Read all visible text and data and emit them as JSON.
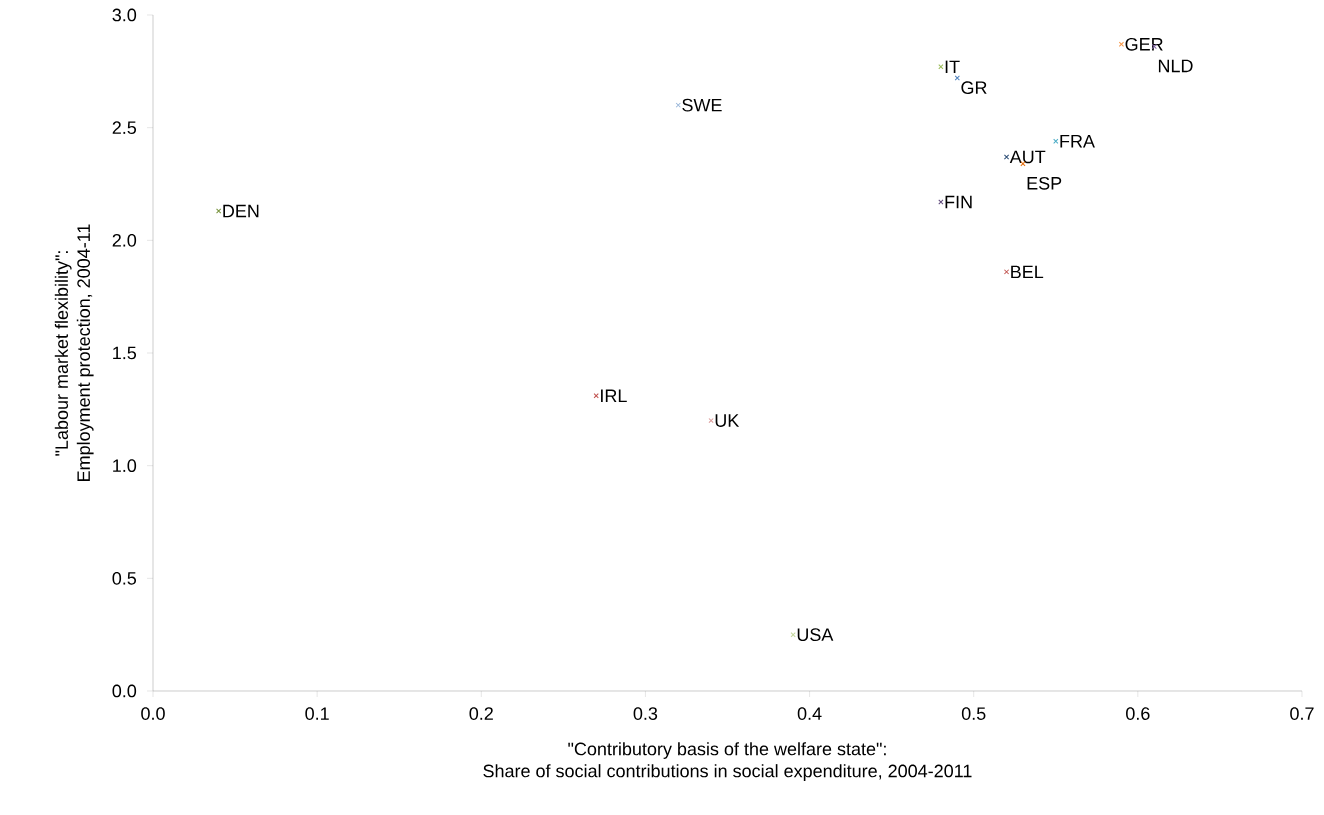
{
  "chart_data": {
    "type": "scatter",
    "xlabel": "\"Contributory basis of the welfare state\": Share of social contributions in social expenditure, 2004-2011",
    "ylabel": "\"Labour market flexibility\": Employment protection, 2004-11",
    "xlim": [
      0,
      0.7
    ],
    "ylim": [
      0,
      3
    ],
    "xticks": [
      {
        "value": 0,
        "label": "0.0"
      },
      {
        "value": 0.1,
        "label": "0.1"
      },
      {
        "value": 0.2,
        "label": "0.2"
      },
      {
        "value": 0.3,
        "label": "0.3"
      },
      {
        "value": 0.4,
        "label": "0.4"
      },
      {
        "value": 0.5,
        "label": "0.5"
      },
      {
        "value": 0.6,
        "label": "0.6"
      },
      {
        "value": 0.7,
        "label": "0.7"
      }
    ],
    "yticks": [
      {
        "value": 0,
        "label": "0.0"
      },
      {
        "value": 0.5,
        "label": "0.5"
      },
      {
        "value": 1,
        "label": "1.0"
      },
      {
        "value": 1.5,
        "label": "1.5"
      },
      {
        "value": 2,
        "label": "2.0"
      },
      {
        "value": 2.5,
        "label": "2.5"
      },
      {
        "value": 3,
        "label": "3.0"
      }
    ],
    "grid": false,
    "marker": "cross",
    "series": [
      {
        "name": "DEN",
        "color": "#77933c",
        "x": [
          0.04
        ],
        "values": [
          2.13
        ]
      },
      {
        "name": "SWE",
        "color": "#95b3d7",
        "x": [
          0.32
        ],
        "values": [
          2.6
        ]
      },
      {
        "name": "IT",
        "color": "#9bbb59",
        "x": [
          0.48
        ],
        "values": [
          2.77
        ]
      },
      {
        "name": "GR",
        "color": "#4f81bd",
        "x": [
          0.49
        ],
        "values": [
          2.72
        ]
      },
      {
        "name": "GER",
        "color": "#f79646",
        "x": [
          0.59
        ],
        "values": [
          2.87
        ]
      },
      {
        "name": "NLD",
        "color": "#8064a2",
        "x": [
          0.61
        ],
        "values": [
          2.86
        ]
      },
      {
        "name": "FRA",
        "color": "#4bacc6",
        "x": [
          0.55
        ],
        "values": [
          2.44
        ]
      },
      {
        "name": "AUT",
        "color": "#2c4d75",
        "x": [
          0.52
        ],
        "values": [
          2.37
        ]
      },
      {
        "name": "ESP",
        "color": "#e46c0a",
        "x": [
          0.53
        ],
        "values": [
          2.34
        ]
      },
      {
        "name": "FIN",
        "color": "#604a7b",
        "x": [
          0.48
        ],
        "values": [
          2.17
        ]
      },
      {
        "name": "BEL",
        "color": "#c0504d",
        "x": [
          0.52
        ],
        "values": [
          1.86
        ]
      },
      {
        "name": "IRL",
        "color": "#c0504d",
        "x": [
          0.27
        ],
        "values": [
          1.31
        ]
      },
      {
        "name": "UK",
        "color": "#d99694",
        "x": [
          0.34
        ],
        "values": [
          1.2
        ]
      },
      {
        "name": "USA",
        "color": "#c3d69b",
        "x": [
          0.39
        ],
        "values": [
          0.25
        ]
      }
    ]
  }
}
